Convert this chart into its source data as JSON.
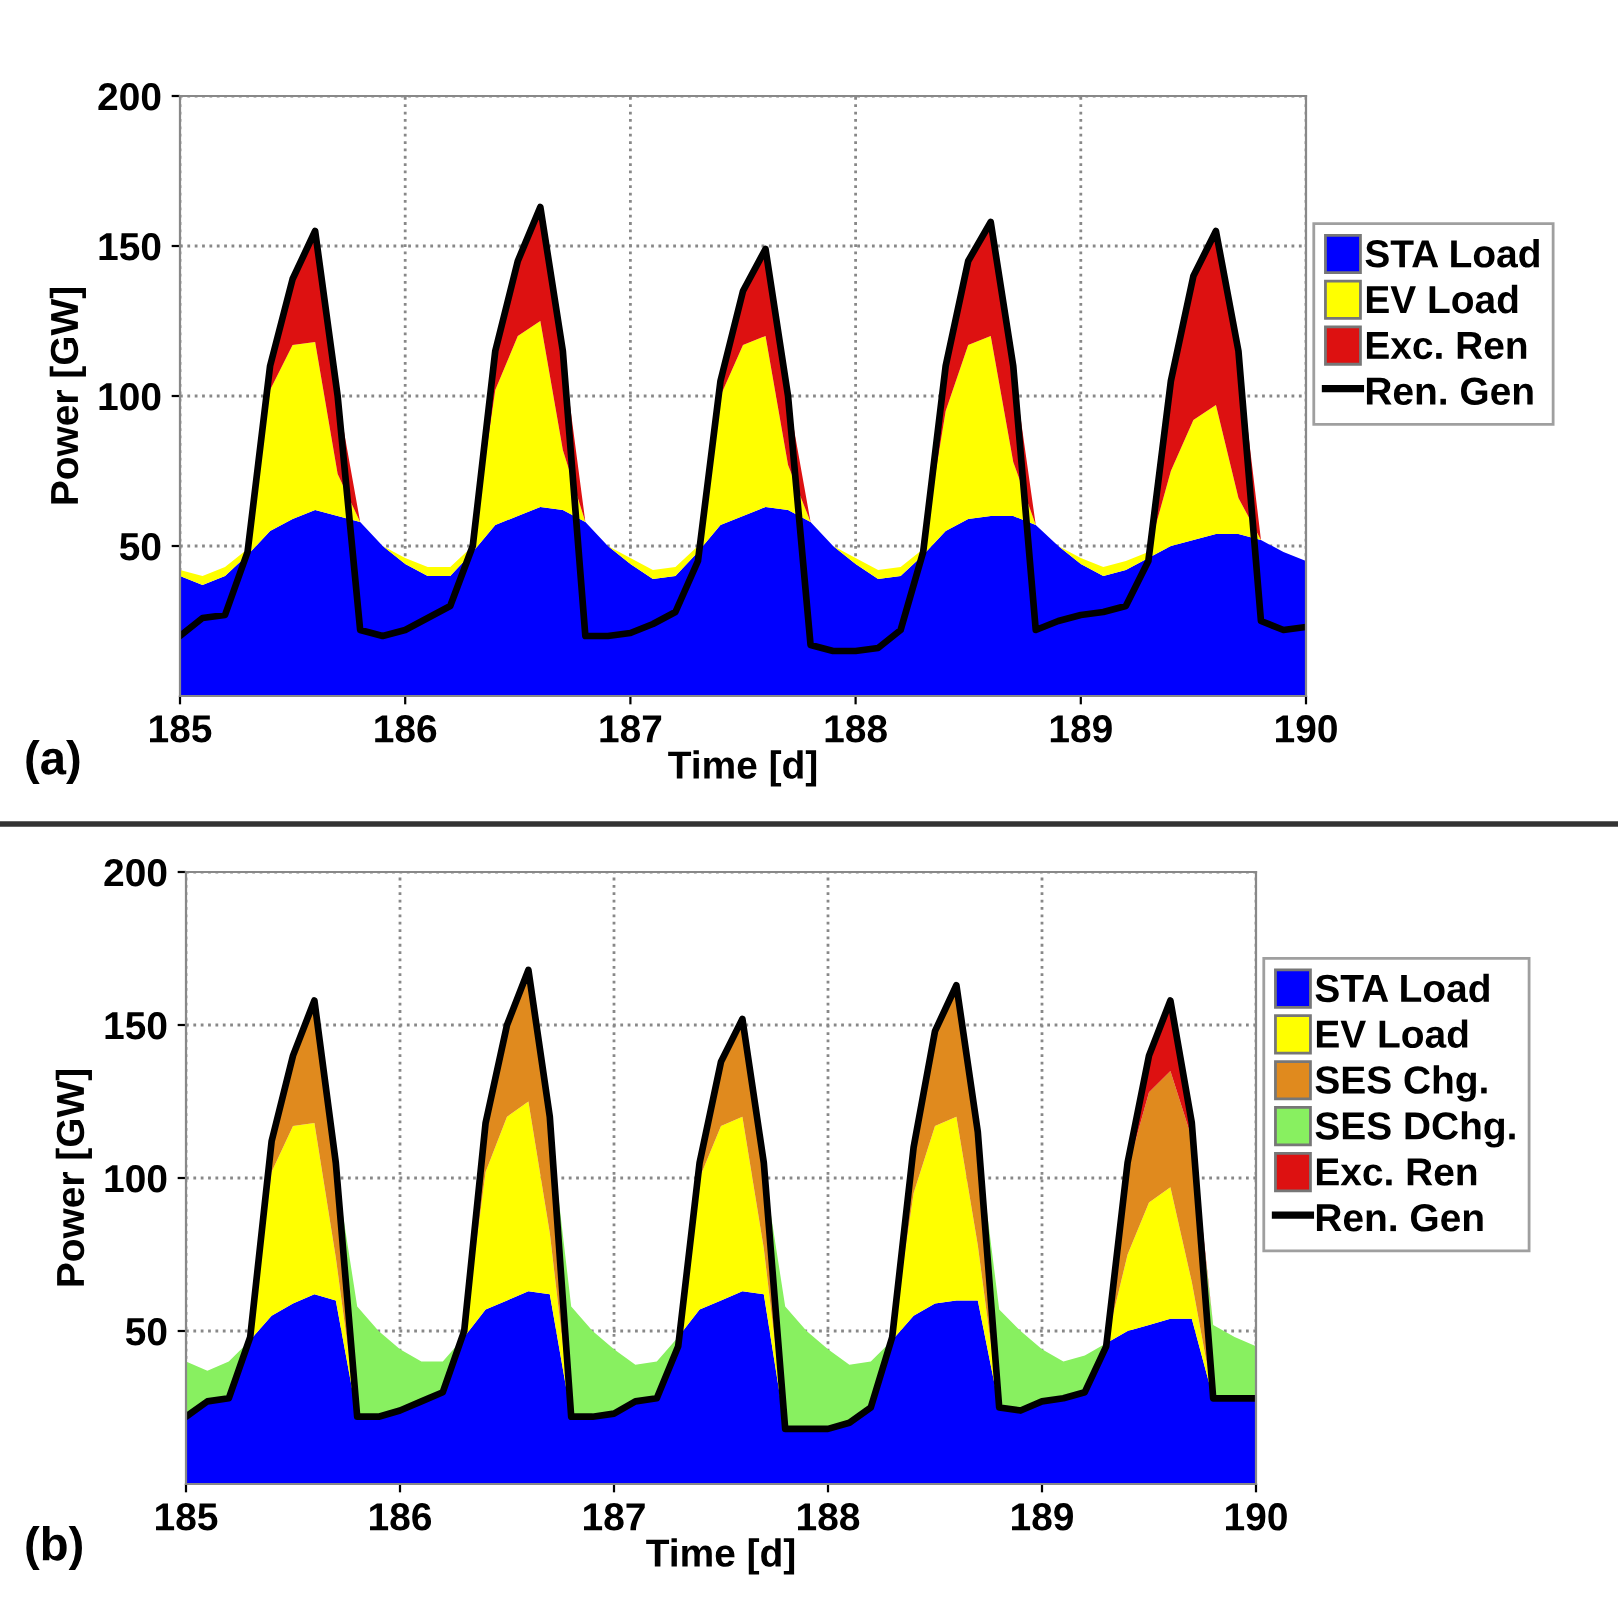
{
  "chart_data": [
    {
      "type": "area",
      "stacked": true,
      "xlabel": "Time [d]",
      "ylabel": "Power [GW]",
      "annotations": [
        "(a)"
      ],
      "x": [
        185,
        185.1,
        185.2,
        185.3,
        185.4,
        185.5,
        185.6,
        185.7,
        185.8,
        185.9,
        186,
        186.1,
        186.2,
        186.3,
        186.4,
        186.5,
        186.6,
        186.7,
        186.8,
        186.9,
        187,
        187.1,
        187.2,
        187.3,
        187.4,
        187.5,
        187.6,
        187.7,
        187.8,
        187.9,
        188,
        188.1,
        188.2,
        188.3,
        188.4,
        188.5,
        188.6,
        188.7,
        188.8,
        188.9,
        189,
        189.1,
        189.2,
        189.3,
        189.4,
        189.5,
        189.6,
        189.7,
        189.8,
        189.9,
        190
      ],
      "xlim": [
        185,
        190
      ],
      "xticks": [
        185,
        186,
        187,
        188,
        189,
        190
      ],
      "ylim": [
        0,
        200
      ],
      "yticks": [
        50,
        100,
        150,
        200
      ],
      "grid": true,
      "legend": "right",
      "series": [
        {
          "name": "STA Load",
          "color": "#0000ff",
          "values": [
            40,
            37,
            40,
            47,
            55,
            59,
            62,
            60,
            58,
            50,
            44,
            40,
            40,
            48,
            57,
            60,
            63,
            62,
            58,
            50,
            44,
            39,
            40,
            48,
            57,
            60,
            63,
            62,
            58,
            50,
            44,
            39,
            40,
            47,
            55,
            59,
            60,
            60,
            57,
            50,
            44,
            40,
            42,
            46,
            50,
            52,
            54,
            54,
            52,
            48,
            45
          ]
        },
        {
          "name": "EV Load",
          "color": "#ffff00",
          "values": [
            2,
            3,
            3,
            2,
            47,
            58,
            56,
            14,
            0,
            0,
            2,
            3,
            3,
            2,
            45,
            60,
            62,
            20,
            0,
            0,
            2,
            3,
            3,
            2,
            43,
            57,
            57,
            15,
            0,
            0,
            2,
            3,
            3,
            2,
            40,
            58,
            60,
            18,
            0,
            0,
            2,
            3,
            3,
            2,
            25,
            40,
            43,
            12,
            0,
            0,
            0
          ]
        },
        {
          "name": "Exc. Ren",
          "color": "#dd1111",
          "values": [
            0,
            0,
            0,
            0,
            8,
            22,
            37,
            26,
            0,
            0,
            0,
            0,
            0,
            0,
            13,
            25,
            38,
            33,
            0,
            0,
            0,
            0,
            0,
            0,
            5,
            18,
            29,
            23,
            0,
            0,
            0,
            0,
            0,
            0,
            15,
            28,
            38,
            32,
            0,
            0,
            0,
            0,
            0,
            0,
            30,
            48,
            58,
            49,
            0,
            0,
            0
          ]
        },
        {
          "name": "Ren. Gen",
          "type": "line",
          "color": "#000000",
          "values": [
            20,
            26,
            27,
            48,
            110,
            139,
            155,
            100,
            22,
            20,
            22,
            26,
            30,
            50,
            115,
            145,
            163,
            115,
            20,
            20,
            21,
            24,
            28,
            45,
            105,
            135,
            149,
            100,
            17,
            15,
            15,
            16,
            22,
            48,
            110,
            145,
            158,
            110,
            22,
            25,
            27,
            28,
            30,
            45,
            105,
            140,
            155,
            115,
            25,
            22,
            23
          ]
        }
      ]
    },
    {
      "type": "area",
      "stacked": true,
      "xlabel": "Time [d]",
      "ylabel": "Power [GW]",
      "annotations": [
        "(b)"
      ],
      "x": [
        185,
        185.1,
        185.2,
        185.3,
        185.4,
        185.5,
        185.6,
        185.7,
        185.8,
        185.9,
        186,
        186.1,
        186.2,
        186.3,
        186.4,
        186.5,
        186.6,
        186.7,
        186.8,
        186.9,
        187,
        187.1,
        187.2,
        187.3,
        187.4,
        187.5,
        187.6,
        187.7,
        187.8,
        187.9,
        188,
        188.1,
        188.2,
        188.3,
        188.4,
        188.5,
        188.6,
        188.7,
        188.8,
        188.9,
        189,
        189.1,
        189.2,
        189.3,
        189.4,
        189.5,
        189.6,
        189.7,
        189.8,
        189.9,
        190
      ],
      "xlim": [
        185,
        190
      ],
      "xticks": [
        185,
        186,
        187,
        188,
        189,
        190
      ],
      "ylim": [
        0,
        200
      ],
      "yticks": [
        50,
        100,
        150,
        200
      ],
      "grid": true,
      "legend": "right",
      "series": [
        {
          "name": "STA Load",
          "color": "#0000ff",
          "values": [
            22,
            27,
            28,
            47,
            55,
            59,
            62,
            60,
            22,
            22,
            24,
            27,
            30,
            48,
            57,
            60,
            63,
            62,
            22,
            22,
            23,
            27,
            28,
            48,
            57,
            60,
            63,
            62,
            18,
            18,
            18,
            20,
            25,
            47,
            55,
            59,
            60,
            60,
            25,
            24,
            27,
            28,
            30,
            46,
            50,
            52,
            54,
            54,
            28,
            28,
            28
          ]
        },
        {
          "name": "EV Load",
          "color": "#ffff00",
          "values": [
            0,
            0,
            0,
            0,
            47,
            58,
            56,
            14,
            0,
            0,
            0,
            0,
            0,
            0,
            45,
            60,
            62,
            20,
            0,
            0,
            0,
            0,
            0,
            0,
            43,
            57,
            57,
            15,
            0,
            0,
            0,
            0,
            0,
            0,
            40,
            58,
            60,
            18,
            0,
            0,
            0,
            0,
            0,
            0,
            25,
            40,
            43,
            12,
            0,
            0,
            0
          ]
        },
        {
          "name": "SES Chg.",
          "color": "#e08a1e",
          "values": [
            0,
            0,
            0,
            0,
            8,
            21,
            38,
            29,
            0,
            0,
            0,
            0,
            0,
            0,
            14,
            28,
            41,
            36,
            0,
            0,
            0,
            0,
            0,
            0,
            3,
            19,
            30,
            26,
            0,
            0,
            0,
            0,
            0,
            0,
            13,
            29,
            41,
            35,
            0,
            0,
            0,
            0,
            0,
            0,
            28,
            36,
            38,
            47,
            0,
            0,
            0
          ]
        },
        {
          "name": "SES DChg.",
          "color": "#88f060",
          "values": [
            18,
            10,
            12,
            0,
            null,
            null,
            null,
            0,
            36,
            28,
            20,
            13,
            10,
            0,
            null,
            null,
            null,
            0,
            36,
            28,
            21,
            12,
            12,
            0,
            null,
            null,
            null,
            0,
            40,
            32,
            26,
            19,
            15,
            0,
            null,
            null,
            null,
            0,
            32,
            26,
            17,
            12,
            12,
            0,
            null,
            null,
            null,
            0,
            24,
            20,
            17
          ]
        },
        {
          "name": "Exc. Ren",
          "color": "#dd1111",
          "values": [
            null,
            null,
            null,
            null,
            null,
            null,
            null,
            null,
            null,
            null,
            null,
            null,
            null,
            null,
            null,
            null,
            null,
            null,
            null,
            null,
            null,
            null,
            null,
            null,
            null,
            null,
            null,
            null,
            null,
            null,
            null,
            null,
            null,
            null,
            null,
            null,
            null,
            null,
            null,
            null,
            null,
            null,
            null,
            null,
            0,
            10,
            21,
            3,
            0,
            null,
            null
          ]
        },
        {
          "name": "Ren. Gen",
          "type": "line",
          "color": "#000000",
          "values": [
            22,
            27,
            28,
            48,
            112,
            140,
            158,
            105,
            22,
            22,
            24,
            27,
            30,
            50,
            118,
            150,
            168,
            120,
            22,
            22,
            23,
            27,
            28,
            45,
            105,
            138,
            152,
            105,
            18,
            18,
            18,
            20,
            25,
            48,
            110,
            148,
            163,
            115,
            25,
            24,
            27,
            28,
            30,
            45,
            105,
            140,
            158,
            118,
            28,
            28,
            28
          ]
        }
      ]
    }
  ]
}
